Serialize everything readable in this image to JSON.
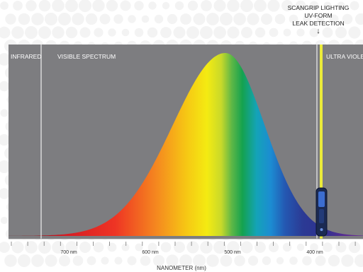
{
  "callout": {
    "line1": "SCANGRIP LIGHTING",
    "line2": "UV-FORM",
    "line3": "LEAK DETECTION",
    "arrow_icon": "arrow-down-icon"
  },
  "regions": {
    "infrared": "INFRARED",
    "visible": "VISIBLE SPECTRUM",
    "ultraviolet": "ULTRA VIOLET"
  },
  "axis": {
    "ticks": [
      "700 nm",
      "600 nm",
      "500 nm",
      "400 nm"
    ],
    "title": "NANOMETER (nm)"
  },
  "colors": {
    "panel": "#7d7d80",
    "uv_line": "#ecec3a",
    "spectrum_peak": "#1fa84f"
  }
}
